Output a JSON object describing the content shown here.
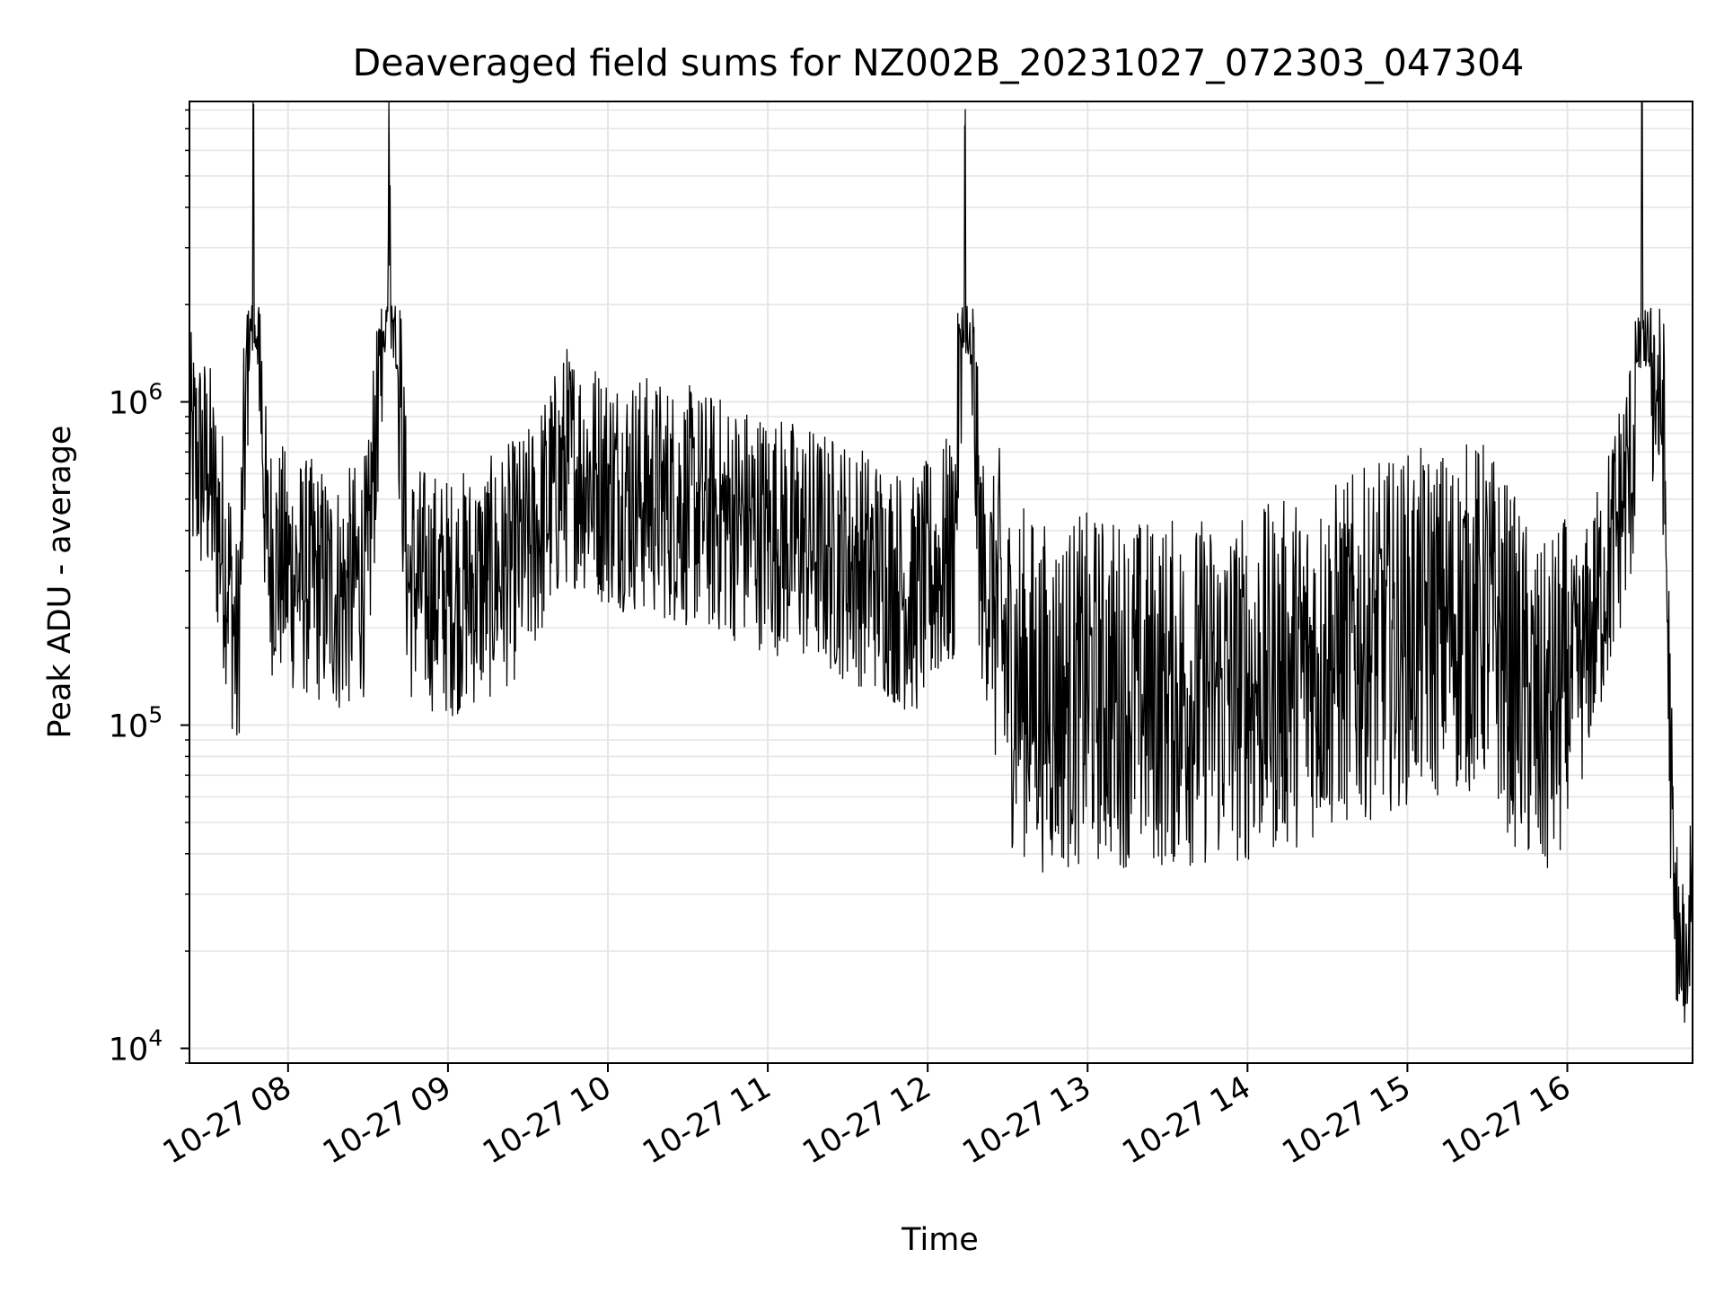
{
  "chart_data": {
    "type": "line",
    "title": "Deaveraged field sums for NZ002B_20231027_072303_047304",
    "xlabel": "Time",
    "ylabel": "Peak ADU - average",
    "yscale": "log",
    "xlim": [
      "2023-10-27 07:23",
      "2023-10-27 16:47"
    ],
    "ylim": [
      9000,
      8500000
    ],
    "grid": true,
    "line_color": "#000000",
    "grid_color": "#e6e6e6",
    "x_ticks": [
      "2023-10-27 08:00",
      "2023-10-27 09:00",
      "2023-10-27 10:00",
      "2023-10-27 11:00",
      "2023-10-27 12:00",
      "2023-10-27 13:00",
      "2023-10-27 14:00",
      "2023-10-27 15:00",
      "2023-10-27 16:00"
    ],
    "x_tick_labels": [
      "10-27 08",
      "10-27 09",
      "10-27 10",
      "10-27 11",
      "10-27 12",
      "10-27 13",
      "10-27 14",
      "10-27 15",
      "10-27 16"
    ],
    "y_ticks": [
      10000,
      100000,
      1000000
    ],
    "y_tick_labels": [
      {
        "base": "10",
        "exp": "4"
      },
      {
        "base": "10",
        "exp": "5"
      },
      {
        "base": "10",
        "exp": "6"
      }
    ],
    "series": [
      {
        "x": [
          "2023-10-27 07:23",
          "2023-10-27 07:30",
          "2023-10-27 07:38",
          "2023-10-27 07:41",
          "2023-10-27 07:47",
          "2023-10-27 07:52",
          "2023-10-27 08:00",
          "2023-10-27 08:10",
          "2023-10-27 08:20",
          "2023-10-27 08:30",
          "2023-10-27 08:38",
          "2023-10-27 08:45",
          "2023-10-27 09:00",
          "2023-10-27 09:15",
          "2023-10-27 09:30",
          "2023-10-27 09:45",
          "2023-10-27 10:00",
          "2023-10-27 10:20",
          "2023-10-27 10:40",
          "2023-10-27 11:00",
          "2023-10-27 11:20",
          "2023-10-27 11:40",
          "2023-10-27 11:55",
          "2023-10-27 12:10",
          "2023-10-27 12:14",
          "2023-10-27 12:20",
          "2023-10-27 12:25",
          "2023-10-27 12:30",
          "2023-10-27 12:45",
          "2023-10-27 13:00",
          "2023-10-27 13:30",
          "2023-10-27 14:00",
          "2023-10-27 14:30",
          "2023-10-27 15:00",
          "2023-10-27 15:30",
          "2023-10-27 15:50",
          "2023-10-27 16:05",
          "2023-10-27 16:15",
          "2023-10-27 16:25",
          "2023-10-27 16:28",
          "2023-10-27 16:32",
          "2023-10-27 16:36",
          "2023-10-27 16:40",
          "2023-10-27 16:44",
          "2023-10-27 16:47"
        ],
        "y": [
          700000,
          600000,
          280000,
          150000,
          5200000,
          350000,
          300000,
          280000,
          250000,
          300000,
          5400000,
          280000,
          250000,
          280000,
          350000,
          650000,
          550000,
          500000,
          450000,
          400000,
          350000,
          300000,
          250000,
          350000,
          4300000,
          300000,
          250000,
          150000,
          120000,
          130000,
          125000,
          130000,
          160000,
          200000,
          220000,
          100000,
          150000,
          300000,
          700000,
          6600000,
          1200000,
          900000,
          25000,
          12000,
          45000
        ]
      }
    ]
  }
}
